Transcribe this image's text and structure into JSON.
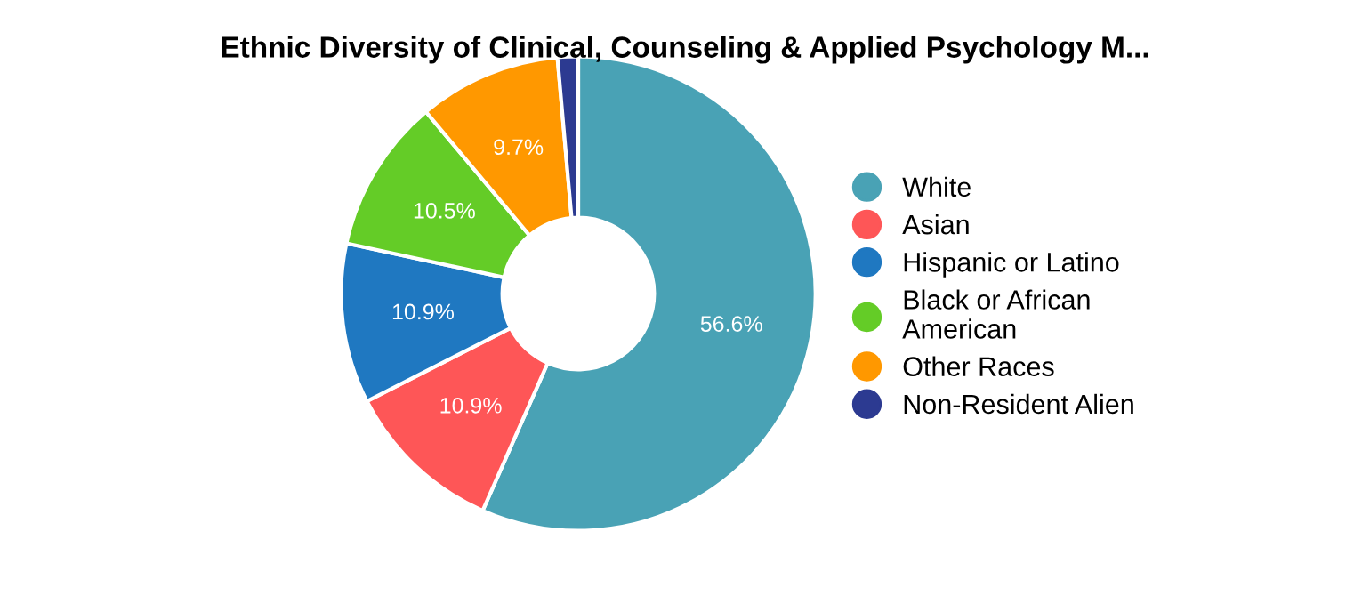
{
  "chart_data": {
    "type": "donut",
    "title": "Ethnic Diversity of Clinical, Counseling & Applied Psychology M...",
    "categories": [
      "White",
      "Asian",
      "Hispanic or Latino",
      "Black or African\nAmerican",
      "Other Races",
      "Non-Resident Alien"
    ],
    "values": [
      56.6,
      10.9,
      10.9,
      10.5,
      9.7,
      1.4
    ],
    "colors": [
      "#49a2b5",
      "#fe5657",
      "#1f78c1",
      "#64cc27",
      "#ff9800",
      "#2c3a91"
    ],
    "value_labels": [
      "56.6%",
      "10.9%",
      "10.9%",
      "10.5%",
      "9.7%",
      null
    ],
    "legend": "right"
  }
}
